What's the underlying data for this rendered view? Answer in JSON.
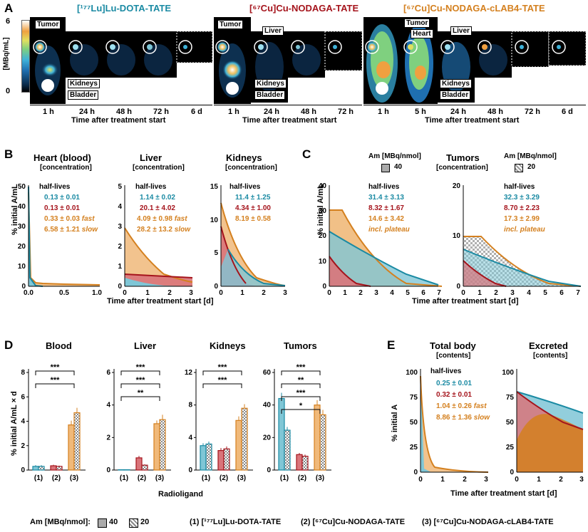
{
  "colors": {
    "teal": "#1a8aa3",
    "tealFill": "#7fc6d6",
    "red": "#a5141c",
    "redFill": "#d9747a",
    "orange": "#d4801f",
    "orangeFill": "#f0b97a"
  },
  "panelA": {
    "letter": "A",
    "colorbar": {
      "max": "6",
      "min": "0",
      "unit": "[MBq/mL]"
    },
    "groups": [
      {
        "title": "[¹⁷⁷Lu]Lu-DOTA-TATE",
        "times": [
          "1 h",
          "24 h",
          "48 h",
          "72 h",
          "6 d"
        ],
        "xlabel": "Time after treatment start",
        "organs": [
          "Tumor",
          "Kidneys",
          "Bladder"
        ]
      },
      {
        "title": "[⁶⁷Cu]Cu-NODAGA-TATE",
        "times": [
          "1 h",
          "24 h",
          "48 h",
          "72 h"
        ],
        "xlabel": "Time after treatment start",
        "organs": [
          "Tumor",
          "Liver",
          "Kidneys",
          "Bladder"
        ]
      },
      {
        "title": "[⁶⁷Cu]Cu-NODAGA-cLAB4-TATE",
        "times": [
          "1 h",
          "5 h",
          "24 h",
          "48 h",
          "72 h",
          "6 d"
        ],
        "xlabel": "Time after treatment start",
        "organs": [
          "Tumor",
          "Heart",
          "Liver",
          "Kidneys",
          "Bladder"
        ]
      }
    ]
  },
  "panelB": {
    "letter": "B",
    "ylabel": "% initial A/mL",
    "xlabel": "Time after treatment start [d]",
    "hl_header": "half-lives",
    "plots": [
      {
        "title": "Heart (blood)",
        "sub": "[concentration]",
        "yticks": [
          "0",
          "10",
          "20",
          "30",
          "40",
          "50"
        ],
        "xticks": [
          "0.0",
          "0.5",
          "1.0"
        ],
        "hl": [
          "0.13 ± 0.01",
          "0.13 ± 0.01",
          "0.33 ± 0.03",
          "6.58 ± 1.21"
        ],
        "hl_tags": [
          "",
          "",
          "fast",
          "slow"
        ]
      },
      {
        "title": "Liver",
        "sub": "[concentration]",
        "yticks": [
          "0",
          "1",
          "2",
          "3",
          "4",
          "5"
        ],
        "xticks": [
          "0",
          "1",
          "2",
          "3"
        ],
        "hl": [
          "1.14 ± 0.02",
          "20.1 ± 4.02",
          "4.09 ± 0.98",
          "28.2 ± 13.2"
        ],
        "hl_tags": [
          "",
          "",
          "fast",
          "slow"
        ]
      },
      {
        "title": "Kidneys",
        "sub": "[concentration]",
        "yticks": [
          "0",
          "5",
          "10",
          "15"
        ],
        "xticks": [
          "0",
          "1",
          "2",
          "3"
        ],
        "hl": [
          "11.4 ± 1.25",
          "4.34 ± 1.00",
          "8.19 ± 0.58"
        ],
        "hl_tags": [
          "",
          "",
          ""
        ]
      }
    ]
  },
  "panelC": {
    "letter": "C",
    "ylabel": "% initial A/mL",
    "xlabel": "Time after treatment start [d]",
    "title": "Tumors",
    "sub": "[concentration]",
    "am_label": "Am [MBq/nmol]",
    "am1": "40",
    "am2": "20",
    "plots": [
      {
        "yticks": [
          "0",
          "10",
          "20",
          "30",
          "40"
        ],
        "xticks": [
          "0",
          "1",
          "2",
          "3",
          "4",
          "5",
          "6",
          "7"
        ],
        "hl": [
          "31.4 ± 3.13",
          "8.32 ± 1.67",
          "14.6 ± 3.42"
        ],
        "hl_tags": [
          "",
          "",
          "incl. plateau"
        ]
      },
      {
        "yticks": [
          "0",
          "10",
          "20"
        ],
        "xticks": [
          "0",
          "1",
          "2",
          "3",
          "4",
          "5",
          "6",
          "7"
        ],
        "hl": [
          "32.3 ± 3.29",
          "8.70 ± 2.23",
          "17.3 ± 2.99"
        ],
        "hl_tags": [
          "",
          "",
          "incl. plateau"
        ]
      }
    ]
  },
  "panelD": {
    "letter": "D",
    "ylabel": "% initial A/mL × d",
    "xlabel": "Radioligand",
    "categories": [
      "(1)",
      "(2)",
      "(3)"
    ],
    "plots": [
      {
        "title": "Blood",
        "yticks": [
          "0",
          "2",
          "4",
          "6",
          "8"
        ],
        "ymax": 8,
        "values40": [
          0.3,
          0.35,
          3.7
        ],
        "values20": [
          0.3,
          0.3,
          4.7
        ],
        "err40": [
          0.1,
          0.08,
          0.35
        ],
        "err20": [
          0.1,
          0.06,
          0.4
        ],
        "sig": [
          "***",
          "***"
        ]
      },
      {
        "title": "Liver",
        "yticks": [
          "0",
          "2",
          "4",
          "6"
        ],
        "ymax": 6,
        "values40": [
          0.02,
          0.75,
          2.85
        ],
        "values20": [
          0.02,
          0.3,
          3.1
        ],
        "err40": [
          0.01,
          0.12,
          0.2
        ],
        "err20": [
          0.01,
          0.05,
          0.3
        ],
        "sig": [
          "***",
          "***",
          "**"
        ]
      },
      {
        "title": "Kidneys",
        "yticks": [
          "0",
          "4",
          "8",
          "12"
        ],
        "ymax": 12,
        "values40": [
          3.0,
          2.4,
          6.1
        ],
        "values20": [
          3.2,
          2.6,
          7.6
        ],
        "err40": [
          0.3,
          0.3,
          0.5
        ],
        "err20": [
          0.3,
          0.3,
          0.5
        ],
        "sig": [
          "***",
          "***"
        ]
      },
      {
        "title": "Tumors",
        "yticks": [
          "0",
          "20",
          "40",
          "60"
        ],
        "ymax": 60,
        "values40": [
          44,
          9.5,
          40
        ],
        "values20": [
          24.5,
          8.5,
          34
        ],
        "err40": [
          3.5,
          1,
          3
        ],
        "err20": [
          2,
          1,
          3
        ],
        "sig": [
          "***",
          "**",
          "***",
          "*"
        ]
      }
    ]
  },
  "panelE": {
    "letter": "E",
    "ylabel": "% initial A",
    "xlabel": "Time after treatment start [d]",
    "plots": [
      {
        "title": "Total body",
        "sub": "[contents]",
        "yticks": [
          "0",
          "25",
          "50",
          "75",
          "100"
        ],
        "xticks": [
          "0",
          "1",
          "2",
          "3"
        ],
        "hl_header": "half-lives",
        "hl": [
          "0.25 ± 0.01",
          "0.32 ± 0.01",
          "1.04 ± 0.26",
          "8.86 ± 1.36"
        ],
        "hl_tags": [
          "",
          "",
          "fast",
          "slow"
        ]
      },
      {
        "title": "Excreted",
        "sub": "[contents]",
        "yticks": [
          "0",
          "25",
          "50",
          "75",
          "100"
        ],
        "xticks": [
          "0",
          "1",
          "2",
          "3"
        ]
      }
    ]
  },
  "legend": {
    "am_label": "Am [MBq/nmol]:",
    "am1": "40",
    "am2": "20",
    "items": [
      "(1) [¹⁷⁷Lu]Lu-DOTA-TATE",
      "(2) [⁶⁷Cu]Cu-NODAGA-TATE",
      "(3) [⁶⁷Cu]Cu-NODAGA-cLAB4-TATE"
    ]
  }
}
